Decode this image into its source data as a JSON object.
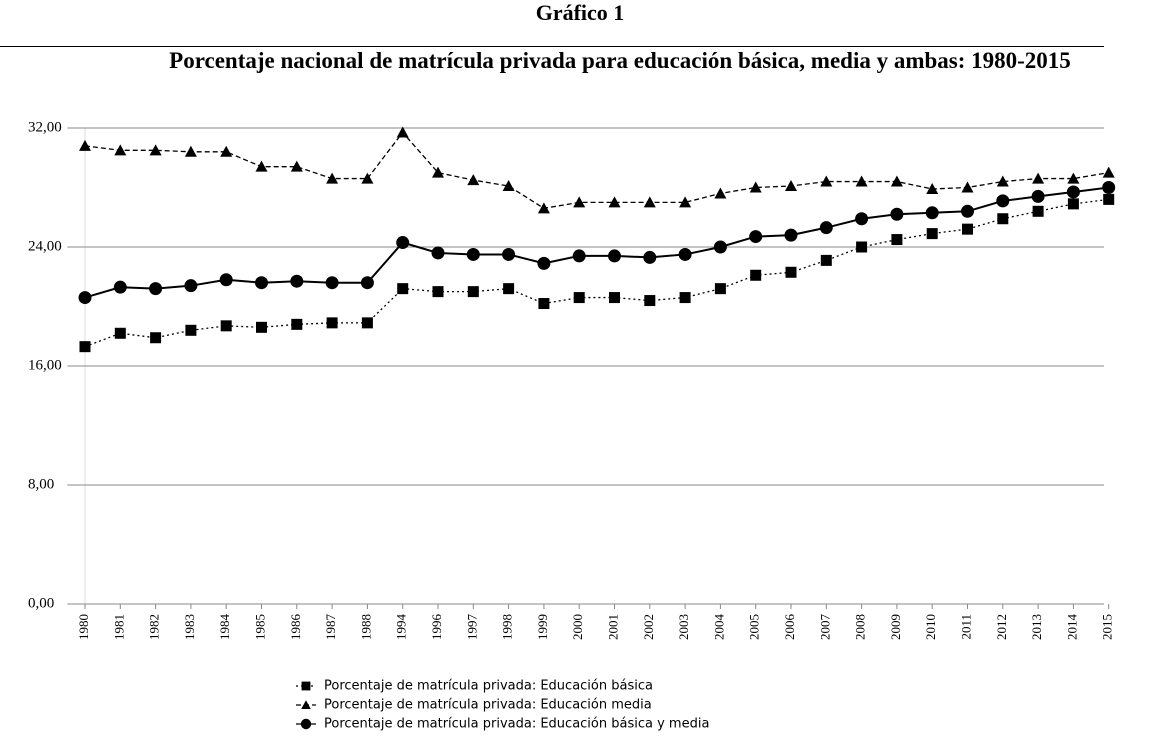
{
  "chart_data": {
    "type": "line",
    "heading": "Gráfico 1",
    "title": "Porcentaje nacional de matrícula privada para educación básica, media y ambas: 1980-2015",
    "categories": [
      "1980",
      "1981",
      "1982",
      "1983",
      "1984",
      "1985",
      "1986",
      "1987",
      "1988",
      "1994",
      "1996",
      "1997",
      "1998",
      "1999",
      "2000",
      "2001",
      "2002",
      "2003",
      "2004",
      "2005",
      "2006",
      "2007",
      "2008",
      "2009",
      "2010",
      "2011",
      "2012",
      "2013",
      "2014",
      "2015"
    ],
    "series": [
      {
        "name": "Porcentaje de matrícula privada: Educación básica",
        "color": "#000000",
        "marker": "square",
        "dash": "dotted",
        "values": [
          17.3,
          18.2,
          17.9,
          18.4,
          18.7,
          18.6,
          18.8,
          18.9,
          18.9,
          21.2,
          21.0,
          21.0,
          21.2,
          20.2,
          20.6,
          20.6,
          20.4,
          20.6,
          21.2,
          22.1,
          22.3,
          23.1,
          24.0,
          24.5,
          24.9,
          25.2,
          25.9,
          26.4,
          26.9,
          27.2
        ]
      },
      {
        "name": "Porcentaje de matrícula privada: Educación media",
        "color": "#000000",
        "marker": "triangle",
        "dash": "dashed",
        "values": [
          30.8,
          30.5,
          30.5,
          30.4,
          30.4,
          29.4,
          29.4,
          28.6,
          28.6,
          31.7,
          29.0,
          28.5,
          28.1,
          26.6,
          27.0,
          27.0,
          27.0,
          27.0,
          27.6,
          28.0,
          28.1,
          28.4,
          28.4,
          28.4,
          27.9,
          28.0,
          28.4,
          28.6,
          28.6,
          29.0
        ]
      },
      {
        "name": "Porcentaje de matrícula privada: Educación básica y media",
        "color": "#000000",
        "marker": "circle",
        "dash": "solid",
        "values": [
          20.6,
          21.3,
          21.2,
          21.4,
          21.8,
          21.6,
          21.7,
          21.6,
          21.6,
          24.3,
          23.6,
          23.5,
          23.5,
          22.9,
          23.4,
          23.4,
          23.3,
          23.5,
          24.0,
          24.7,
          24.8,
          25.3,
          25.9,
          26.2,
          26.3,
          26.4,
          27.1,
          27.4,
          27.7,
          28.0
        ]
      }
    ],
    "ylim": [
      0,
      32
    ],
    "yticks": [
      {
        "value": 0,
        "label": "0,00"
      },
      {
        "value": 8,
        "label": "8,00"
      },
      {
        "value": 16,
        "label": "16,00"
      },
      {
        "value": 24,
        "label": "24,00"
      },
      {
        "value": 32,
        "label": "32,00"
      }
    ],
    "grid": true,
    "legend": "bottom"
  }
}
